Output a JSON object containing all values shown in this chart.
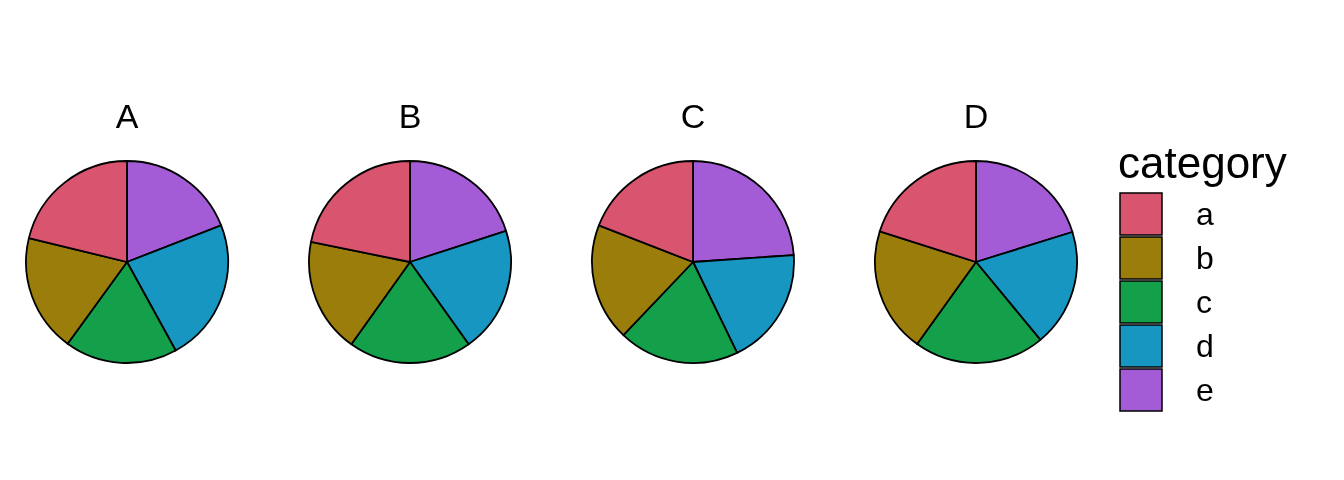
{
  "chart_data": [
    {
      "type": "pie",
      "title": "A",
      "categories": [
        null,
        null,
        null,
        null,
        null
      ],
      "values": [
        21.2,
        18.8,
        18.0,
        22.9,
        19.1
      ],
      "colors": [
        "#d9546f",
        "#9a7d0a",
        "#14a04a",
        "#1696c0",
        "#a45cd6"
      ]
    },
    {
      "type": "pie",
      "title": "B",
      "categories": [
        null,
        null,
        null,
        null,
        null
      ],
      "values": [
        21.8,
        18.3,
        19.7,
        20.1,
        20.0
      ],
      "colors": [
        "#d9546f",
        "#9a7d0a",
        "#14a04a",
        "#1696c0",
        "#a45cd6"
      ]
    },
    {
      "type": "pie",
      "title": "C",
      "categories": [
        null,
        null,
        null,
        null,
        null
      ],
      "values": [
        19.1,
        18.8,
        19.3,
        18.9,
        23.9
      ],
      "colors": [
        "#d9546f",
        "#9a7d0a",
        "#14a04a",
        "#1696c0",
        "#a45cd6"
      ]
    },
    {
      "type": "pie",
      "title": "D",
      "categories": [
        "a",
        "b",
        "c",
        "d",
        "e"
      ],
      "values": [
        20.1,
        20.0,
        20.9,
        18.8,
        20.2
      ],
      "colors": [
        "#d9546f",
        "#9a7d0a",
        "#14a04a",
        "#1696c0",
        "#a45cd6"
      ],
      "legend": "right",
      "legend_title": "category"
    }
  ]
}
